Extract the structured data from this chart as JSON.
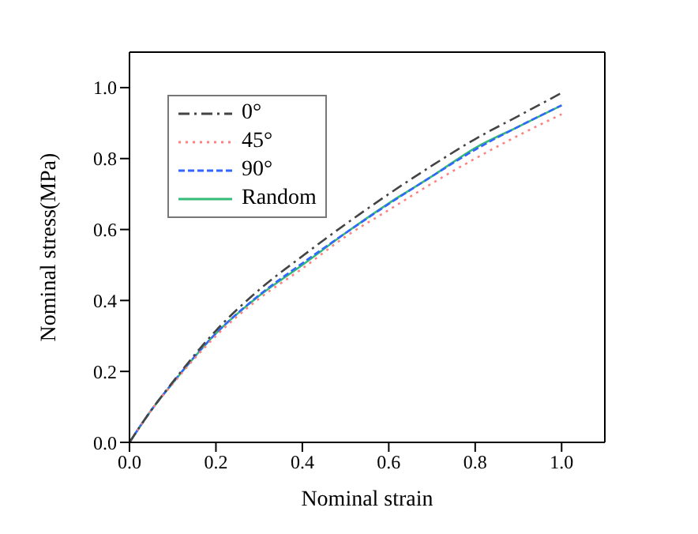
{
  "chart_data": {
    "type": "line",
    "xlabel": "Nominal strain",
    "ylabel": "Nominal stress(MPa)",
    "x": [
      0,
      0.05,
      0.1,
      0.2,
      0.3,
      0.4,
      0.5,
      0.6,
      0.7,
      0.8,
      0.9,
      1.0
    ],
    "series": [
      {
        "name": "0°",
        "color": "#444444",
        "line_style": "dashdot",
        "values": [
          0,
          0.09,
          0.17,
          0.315,
          0.43,
          0.525,
          0.615,
          0.7,
          0.78,
          0.855,
          0.92,
          0.985
        ]
      },
      {
        "name": "45°",
        "color": "#ff8080",
        "line_style": "dotted",
        "values": [
          0,
          0.09,
          0.165,
          0.3,
          0.405,
          0.49,
          0.58,
          0.655,
          0.73,
          0.8,
          0.865,
          0.925
        ]
      },
      {
        "name": "90°",
        "color": "#3366ff",
        "line_style": "dashed",
        "values": [
          0,
          0.09,
          0.168,
          0.307,
          0.415,
          0.505,
          0.59,
          0.672,
          0.75,
          0.825,
          0.89,
          0.95
        ]
      },
      {
        "name": "Random",
        "color": "#33bb77",
        "line_style": "solid",
        "values": [
          0,
          0.09,
          0.167,
          0.307,
          0.413,
          0.5,
          0.59,
          0.674,
          0.75,
          0.83,
          0.89,
          0.95
        ]
      }
    ],
    "xlim": [
      0,
      1.1
    ],
    "ylim": [
      0,
      1.1
    ],
    "xticks": [
      {
        "value": 0,
        "label": "0.0"
      },
      {
        "value": 0.2,
        "label": "0.2"
      },
      {
        "value": 0.4,
        "label": "0.4"
      },
      {
        "value": 0.6,
        "label": "0.6"
      },
      {
        "value": 0.8,
        "label": "0.8"
      },
      {
        "value": 1,
        "label": "1.0"
      }
    ],
    "yticks": [
      {
        "value": 0,
        "label": "0.0"
      },
      {
        "value": 0.2,
        "label": "0.2"
      },
      {
        "value": 0.4,
        "label": "0.4"
      },
      {
        "value": 0.6,
        "label": "0.6"
      },
      {
        "value": 0.8,
        "label": "0.8"
      },
      {
        "value": 1,
        "label": "1.0"
      }
    ],
    "legend": "top left",
    "grid": false,
    "marker": "none"
  }
}
